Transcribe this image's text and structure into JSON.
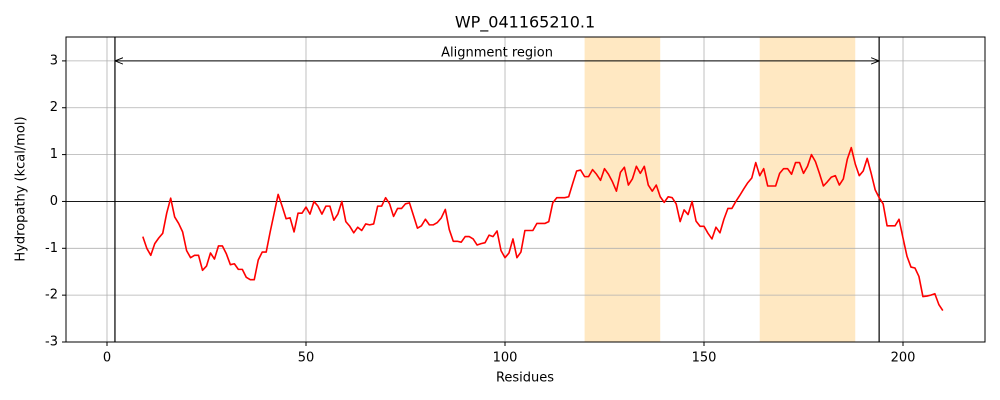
{
  "chart_data": {
    "type": "line",
    "title": "WP_041165210.1",
    "x_label": "Residues",
    "y_label": "Hydropathy (kcal/mol)",
    "color": "#ff0000",
    "x": [
      9,
      10,
      11,
      12,
      13,
      14,
      15,
      16,
      17,
      18,
      19,
      20,
      21,
      22,
      23,
      24,
      25,
      26,
      27,
      28,
      29,
      30,
      31,
      32,
      33,
      34,
      35,
      36,
      37,
      38,
      39,
      40,
      41,
      42,
      43,
      44,
      45,
      46,
      47,
      48,
      49,
      50,
      51,
      52,
      53,
      54,
      55,
      56,
      57,
      58,
      59,
      60,
      61,
      62,
      63,
      64,
      65,
      66,
      67,
      68,
      69,
      70,
      71,
      72,
      73,
      74,
      75,
      76,
      77,
      78,
      79,
      80,
      81,
      82,
      83,
      84,
      85,
      86,
      87,
      88,
      89,
      90,
      91,
      92,
      93,
      94,
      95,
      96,
      97,
      98,
      99,
      100,
      101,
      102,
      103,
      104,
      105,
      106,
      107,
      108,
      109,
      110,
      111,
      112,
      113,
      114,
      115,
      116,
      117,
      118,
      119,
      120,
      121,
      122,
      123,
      124,
      125,
      126,
      127,
      128,
      129,
      130,
      131,
      132,
      133,
      134,
      135,
      136,
      137,
      138,
      139,
      140,
      141,
      142,
      143,
      144,
      145,
      146,
      147,
      148,
      149,
      150,
      151,
      152,
      153,
      154,
      155,
      156,
      157,
      158,
      159,
      160,
      161,
      162,
      163,
      164,
      165,
      166,
      167,
      168,
      169,
      170,
      171,
      172,
      173,
      174,
      175,
      176,
      177,
      178,
      179,
      180,
      181,
      182,
      183,
      184,
      185,
      186,
      187,
      188,
      189,
      190,
      191,
      192,
      193,
      194,
      195,
      196,
      197,
      198,
      199,
      200,
      201,
      202,
      203,
      204,
      205,
      206,
      207,
      208,
      209,
      210
    ],
    "values": [
      -0.75,
      -1.0,
      -1.15,
      -0.9,
      -0.78,
      -0.68,
      -0.25,
      0.07,
      -0.33,
      -0.47,
      -0.65,
      -1.05,
      -1.2,
      -1.15,
      -1.15,
      -1.47,
      -1.38,
      -1.1,
      -1.23,
      -0.95,
      -0.95,
      -1.12,
      -1.35,
      -1.33,
      -1.45,
      -1.45,
      -1.62,
      -1.67,
      -1.67,
      -1.25,
      -1.08,
      -1.08,
      -0.65,
      -0.25,
      0.15,
      -0.1,
      -0.37,
      -0.35,
      -0.65,
      -0.25,
      -0.25,
      -0.12,
      -0.27,
      0.0,
      -0.1,
      -0.27,
      -0.1,
      -0.1,
      -0.4,
      -0.27,
      0.0,
      -0.43,
      -0.53,
      -0.67,
      -0.55,
      -0.62,
      -0.48,
      -0.5,
      -0.48,
      -0.1,
      -0.1,
      0.08,
      -0.05,
      -0.32,
      -0.15,
      -0.15,
      -0.05,
      -0.03,
      -0.3,
      -0.57,
      -0.52,
      -0.38,
      -0.5,
      -0.5,
      -0.45,
      -0.35,
      -0.17,
      -0.6,
      -0.85,
      -0.85,
      -0.87,
      -0.75,
      -0.75,
      -0.8,
      -0.93,
      -0.9,
      -0.88,
      -0.72,
      -0.75,
      -0.63,
      -1.05,
      -1.2,
      -1.1,
      -0.8,
      -1.2,
      -1.08,
      -0.62,
      -0.62,
      -0.62,
      -0.47,
      -0.47,
      -0.47,
      -0.43,
      -0.03,
      0.08,
      0.08,
      0.08,
      0.1,
      0.38,
      0.65,
      0.67,
      0.53,
      0.53,
      0.68,
      0.58,
      0.45,
      0.7,
      0.58,
      0.42,
      0.22,
      0.62,
      0.73,
      0.35,
      0.48,
      0.75,
      0.6,
      0.75,
      0.35,
      0.22,
      0.35,
      0.1,
      -0.02,
      0.1,
      0.08,
      -0.05,
      -0.43,
      -0.18,
      -0.28,
      0.0,
      -0.42,
      -0.53,
      -0.53,
      -0.68,
      -0.8,
      -0.55,
      -0.67,
      -0.38,
      -0.15,
      -0.15,
      0.0,
      0.13,
      0.27,
      0.4,
      0.5,
      0.83,
      0.55,
      0.7,
      0.33,
      0.33,
      0.33,
      0.6,
      0.7,
      0.7,
      0.58,
      0.83,
      0.83,
      0.6,
      0.75,
      1.0,
      0.85,
      0.6,
      0.33,
      0.42,
      0.52,
      0.55,
      0.35,
      0.48,
      0.9,
      1.15,
      0.8,
      0.55,
      0.65,
      0.92,
      0.6,
      0.25,
      0.08,
      -0.05,
      -0.52,
      -0.52,
      -0.52,
      -0.38,
      -0.78,
      -1.17,
      -1.4,
      -1.42,
      -1.6,
      -2.03,
      -2.02,
      -2.0,
      -1.97,
      -2.2,
      -2.33
    ],
    "xlim": [
      -10.3,
      220.6
    ],
    "ylim": [
      -3,
      3.51
    ],
    "xticks": [
      0,
      50,
      100,
      150,
      200
    ],
    "yticks": [
      -3,
      -2,
      -1,
      0,
      1,
      2,
      3
    ],
    "grid": true,
    "hlines": [
      0
    ],
    "vlines": [
      2,
      194
    ],
    "spans": [
      [
        120,
        139
      ],
      [
        164,
        188
      ]
    ],
    "span_color": "#ffe8c2",
    "arrow": {
      "text": "Alignment region",
      "x": [
        2,
        194
      ],
      "y": 3
    }
  }
}
